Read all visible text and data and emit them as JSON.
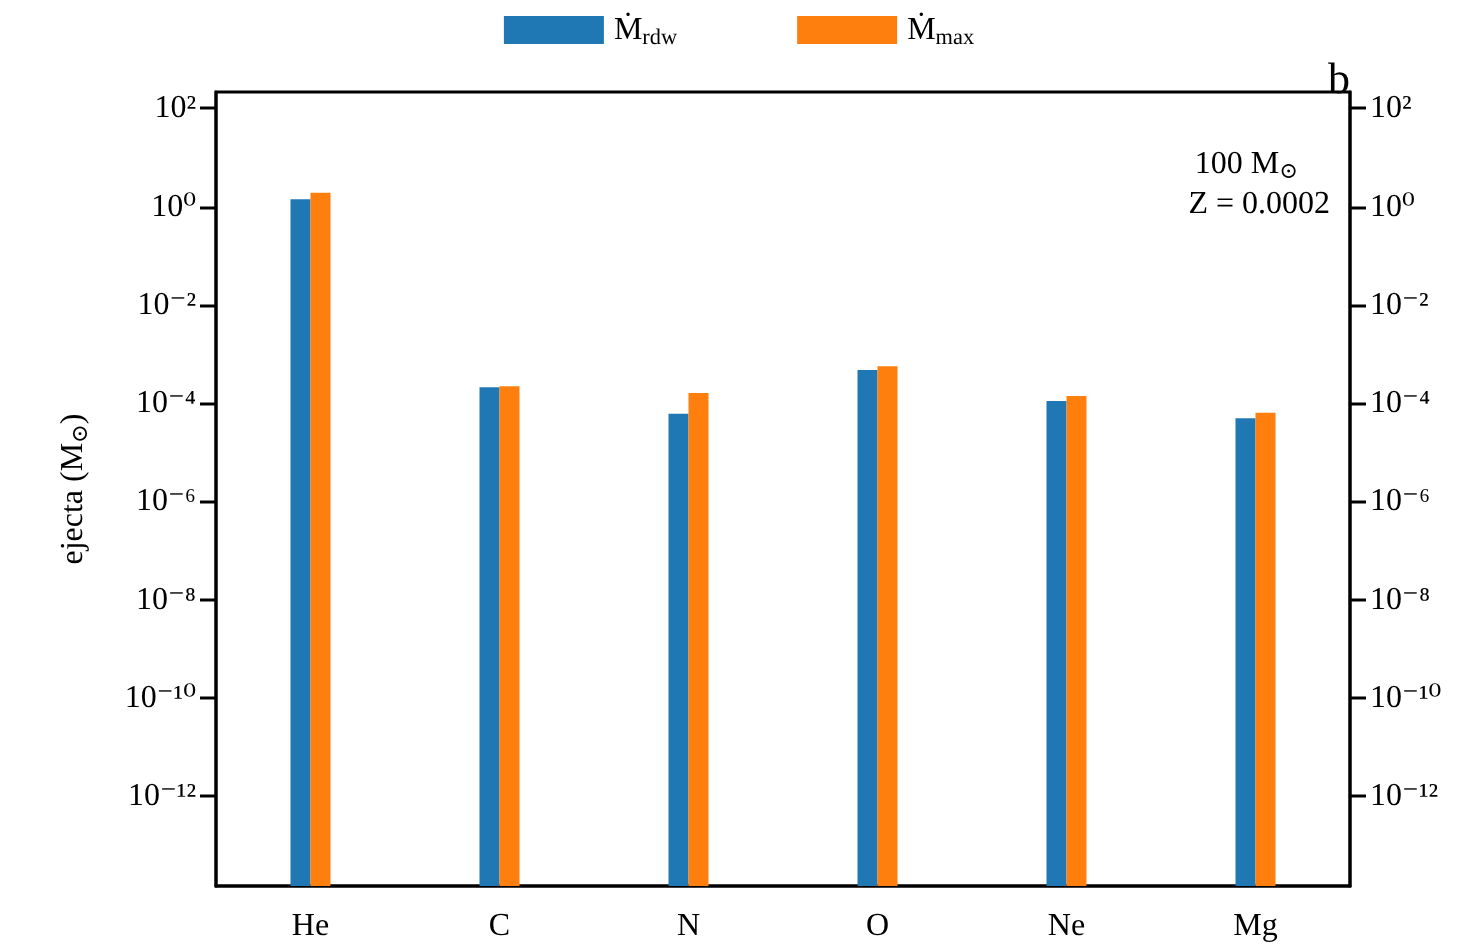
{
  "chart_data": {
    "type": "bar",
    "categories": [
      "He",
      "C",
      "N",
      "O",
      "Ne",
      "Mg"
    ],
    "series": [
      {
        "name": "Ṁ$_{rdw}$",
        "color": "#1f77b4",
        "values": [
          1.4,
          0.00021,
          6.1e-05,
          0.00047,
          0.00011,
          4.9e-05
        ]
      },
      {
        "name": "Ṁ$_{max}$",
        "color": "#ff7f0e",
        "values": [
          1.9,
          0.00022,
          0.00016,
          0.00056,
          0.00014,
          6.4e-05
        ]
      }
    ],
    "ylabel": "ejecta (M$_{⊙}$)",
    "log": "y",
    "ylim": [
      1.5e-14,
      214
    ],
    "yticks": [
      {
        "value": 1e-12,
        "label": "10⁻¹²"
      },
      {
        "value": 1e-10,
        "label": "10⁻¹⁰"
      },
      {
        "value": 1e-08,
        "label": "10⁻⁸"
      },
      {
        "value": 1e-06,
        "label": "10⁻⁶"
      },
      {
        "value": 0.0001,
        "label": "10⁻⁴"
      },
      {
        "value": 0.01,
        "label": "10⁻²"
      },
      {
        "value": 1,
        "label": "10⁰"
      },
      {
        "value": 100,
        "label": "10²"
      }
    ],
    "annotations": [
      "b",
      "100 M$_{⊙}$",
      "Z = 0.0002"
    ],
    "grid": false,
    "legend": "top"
  }
}
